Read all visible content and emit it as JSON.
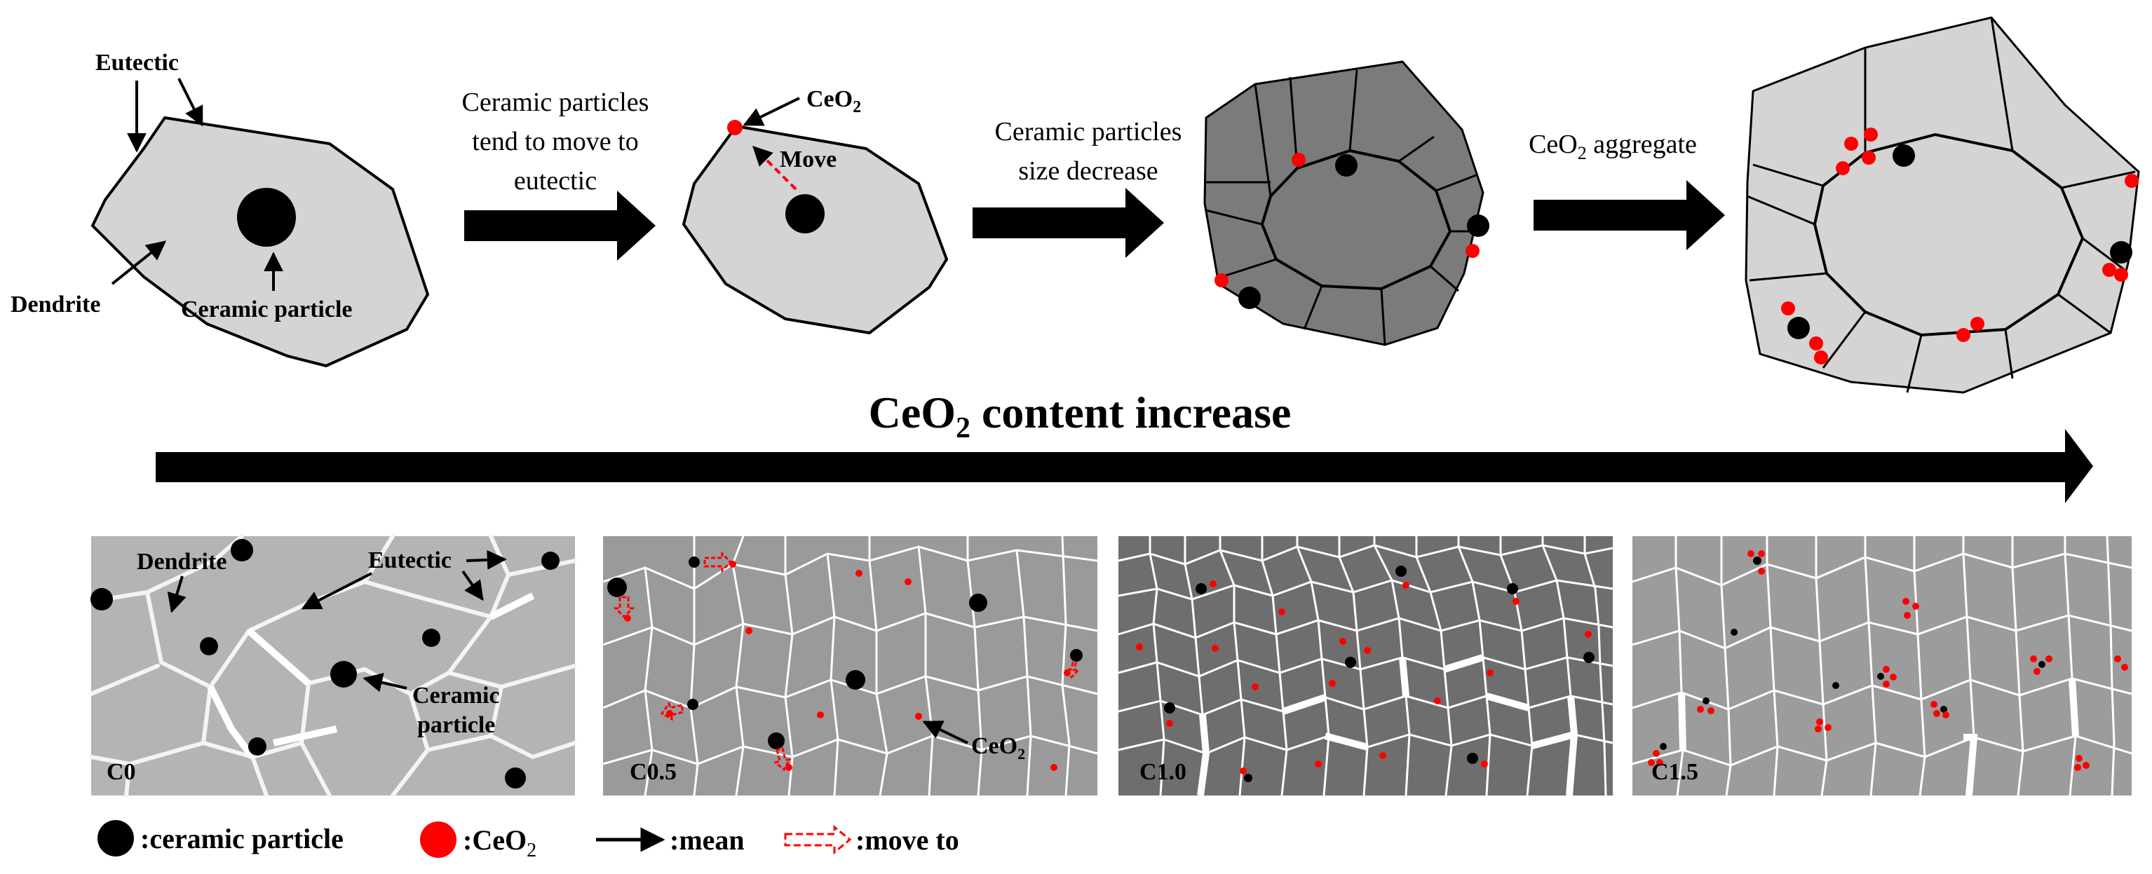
{
  "stage1": {
    "eutectic": "Eutectic",
    "dendrite": "Dendrite",
    "ceramic_particle": "Ceramic particle"
  },
  "step1": {
    "line1": "Ceramic particles",
    "line2": "tend to move to",
    "line3": "eutectic"
  },
  "stage2": {
    "ceo2_base": "CeO",
    "ceo2_sub": "2",
    "move": "Move"
  },
  "step2": {
    "line1": "Ceramic particles",
    "line2": "size decrease"
  },
  "step3": {
    "base": "CeO",
    "sub": "2",
    "rest": " aggregate"
  },
  "trend": {
    "base": "CeO",
    "sub": "2",
    "rest": " content increase"
  },
  "panels": [
    {
      "label": "C0",
      "dendrite": "Dendrite",
      "eutectic": "Eutectic",
      "ceramic_line1": "Ceramic",
      "ceramic_line2": "particle"
    },
    {
      "label": "C0.5",
      "ceo2_base": "CeO",
      "ceo2_sub": "2"
    },
    {
      "label": "C1.0"
    },
    {
      "label": "C1.5"
    }
  ],
  "legend": {
    "ceramic": ":ceramic particle",
    "ceo2_base": ":CeO",
    "ceo2_sub": "2",
    "mean": ":mean",
    "move_to": ":move to"
  },
  "colors": {
    "light_grain": "#d4d4d4",
    "dark_grain": "#7b7b7b",
    "ceo2": "#ff0000",
    "particle": "#000000",
    "panel_c0": "#b4b4b4",
    "panel_c05": "#9a9a9a",
    "panel_c10": "#6e6e6e",
    "panel_c15": "#9c9c9c"
  }
}
